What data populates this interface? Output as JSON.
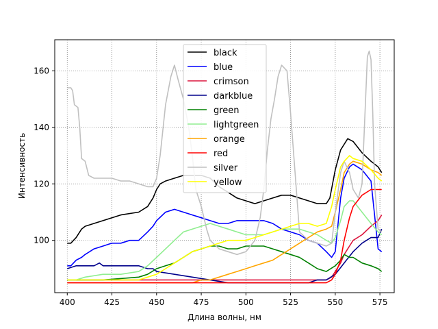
{
  "chart_data": {
    "type": "line",
    "title": "",
    "xlabel": "Длина волны, нм",
    "ylabel": "Интенсивность",
    "xlim": [
      393,
      583
    ],
    "ylim": [
      81.5,
      171
    ],
    "xticks": [
      400,
      425,
      450,
      475,
      500,
      525,
      550,
      575
    ],
    "yticks": [
      100,
      120,
      140,
      160
    ],
    "grid": true,
    "legend_position": "top-center",
    "series": [
      {
        "name": "black",
        "color": "#000000",
        "x": [
          400,
          402,
          405,
          408,
          410,
          415,
          420,
          425,
          430,
          440,
          445,
          448,
          450,
          452,
          455,
          460,
          465,
          470,
          475,
          480,
          485,
          490,
          495,
          500,
          505,
          510,
          515,
          520,
          525,
          530,
          535,
          540,
          545,
          547,
          550,
          553,
          555,
          557,
          560,
          565,
          570,
          574,
          576
        ],
        "y": [
          99,
          99,
          101,
          104,
          105,
          106,
          107,
          108,
          109,
          110,
          112,
          115,
          118,
          120,
          121,
          122,
          123,
          123,
          123,
          122,
          119,
          117,
          115,
          114,
          113,
          114,
          115,
          116,
          116,
          115,
          114,
          113,
          113,
          115,
          125,
          132,
          134,
          136,
          135,
          131,
          128,
          126,
          124
        ]
      },
      {
        "name": "blue",
        "color": "#0000ff",
        "x": [
          400,
          402,
          405,
          408,
          410,
          415,
          420,
          425,
          430,
          435,
          440,
          445,
          448,
          450,
          455,
          460,
          465,
          470,
          475,
          480,
          485,
          490,
          495,
          500,
          505,
          510,
          515,
          520,
          525,
          530,
          535,
          540,
          545,
          548,
          550,
          553,
          555,
          558,
          560,
          565,
          570,
          574,
          576
        ],
        "y": [
          91,
          91,
          93,
          94,
          95,
          97,
          98,
          99,
          99,
          100,
          100,
          103,
          105,
          107,
          110,
          111,
          110,
          109,
          108,
          107,
          106,
          106,
          107,
          107,
          107,
          107,
          106,
          104,
          103,
          102,
          100,
          99,
          96,
          94,
          96,
          115,
          122,
          126,
          127,
          125,
          121,
          97,
          96
        ]
      },
      {
        "name": "crimson",
        "color": "#dc143c",
        "x": [
          400,
          420,
          440,
          460,
          480,
          500,
          520,
          535,
          540,
          545,
          548,
          550,
          553,
          555,
          558,
          560,
          565,
          570,
          574,
          576
        ],
        "y": [
          86,
          86,
          86,
          86,
          86,
          86,
          86,
          86,
          86,
          86,
          87,
          89,
          92,
          95,
          98,
          100,
          102,
          105,
          107,
          109
        ]
      },
      {
        "name": "darkblue",
        "color": "#00008b",
        "x": [
          400,
          405,
          410,
          415,
          418,
          420,
          425,
          430,
          440,
          445,
          448,
          450,
          460,
          470,
          480,
          490,
          500,
          510,
          520,
          530,
          535,
          540,
          545,
          550,
          555,
          560,
          565,
          570,
          574,
          576
        ],
        "y": [
          90,
          91,
          91,
          91,
          92,
          91,
          91,
          91,
          91,
          90,
          90,
          89,
          88,
          87,
          86,
          85,
          85,
          85,
          85,
          85,
          85,
          86,
          86,
          88,
          92,
          96,
          99,
          101,
          101,
          104
        ]
      },
      {
        "name": "green",
        "color": "#008000",
        "x": [
          400,
          420,
          440,
          445,
          450,
          455,
          460,
          465,
          470,
          475,
          480,
          485,
          490,
          495,
          500,
          505,
          510,
          515,
          520,
          525,
          530,
          535,
          540,
          545,
          550,
          553,
          555,
          558,
          560,
          565,
          570,
          574,
          576
        ],
        "y": [
          86,
          86,
          87,
          88,
          90,
          91,
          92,
          94,
          96,
          97,
          98,
          98,
          97,
          97,
          98,
          98,
          98,
          97,
          96,
          95,
          94,
          92,
          90,
          89,
          91,
          93,
          95,
          94,
          94,
          92,
          91,
          90,
          89
        ]
      },
      {
        "name": "lightgreen",
        "color": "#90ee90",
        "x": [
          400,
          405,
          410,
          420,
          430,
          440,
          445,
          450,
          455,
          460,
          465,
          470,
          475,
          480,
          485,
          490,
          495,
          500,
          505,
          510,
          515,
          520,
          525,
          530,
          535,
          540,
          545,
          548,
          550,
          553,
          555,
          558,
          560,
          565,
          570,
          574,
          576
        ],
        "y": [
          86,
          86,
          87,
          88,
          88,
          89,
          91,
          94,
          97,
          100,
          103,
          104,
          105,
          106,
          105,
          104,
          103,
          102,
          102,
          102,
          103,
          104,
          104,
          104,
          103,
          102,
          100,
          99,
          101,
          107,
          112,
          114,
          114,
          110,
          106,
          103,
          102
        ]
      },
      {
        "name": "orange",
        "color": "#ffa500",
        "x": [
          400,
          420,
          440,
          460,
          470,
          475,
          480,
          485,
          490,
          495,
          500,
          505,
          510,
          515,
          520,
          525,
          530,
          535,
          540,
          545,
          548,
          550,
          553,
          555,
          558,
          560,
          565,
          570,
          574,
          576
        ],
        "y": [
          85,
          85,
          85,
          85,
          85,
          86,
          86,
          87,
          88,
          89,
          90,
          91,
          92,
          93,
          95,
          97,
          99,
          101,
          103,
          104,
          105,
          110,
          118,
          124,
          127,
          128,
          127,
          125,
          124,
          123
        ]
      },
      {
        "name": "red",
        "color": "#ff0000",
        "x": [
          400,
          420,
          440,
          460,
          480,
          500,
          520,
          535,
          540,
          545,
          548,
          550,
          553,
          555,
          558,
          560,
          565,
          570,
          574,
          576
        ],
        "y": [
          85,
          85,
          85,
          85,
          85,
          85,
          85,
          85,
          85,
          85,
          86,
          88,
          93,
          100,
          108,
          112,
          116,
          118,
          118,
          118
        ]
      },
      {
        "name": "silver",
        "color": "#c0c0c0",
        "x": [
          400,
          402,
          403,
          404,
          406,
          407,
          408,
          410,
          412,
          415,
          420,
          425,
          430,
          435,
          440,
          445,
          448,
          450,
          452,
          455,
          458,
          460,
          462,
          465,
          468,
          470,
          472,
          475,
          478,
          480,
          485,
          490,
          495,
          500,
          505,
          508,
          510,
          512,
          514,
          516,
          518,
          520,
          523,
          525,
          528,
          530,
          535,
          540,
          545,
          548,
          550,
          553,
          555,
          558,
          560,
          563,
          565,
          566,
          568,
          569,
          570,
          571,
          572,
          574,
          576
        ],
        "y": [
          154,
          154,
          153,
          148,
          147,
          140,
          129,
          128,
          123,
          122,
          122,
          122,
          121,
          121,
          120,
          119,
          119,
          122,
          130,
          148,
          158,
          162,
          157,
          150,
          140,
          130,
          118,
          112,
          104,
          100,
          97,
          96,
          95,
          96,
          100,
          108,
          118,
          132,
          143,
          150,
          158,
          162,
          160,
          145,
          120,
          103,
          100,
          99,
          98,
          99,
          110,
          124,
          128,
          124,
          118,
          115,
          120,
          135,
          165,
          167,
          164,
          145,
          120,
          104,
          103
        ]
      },
      {
        "name": "yellow",
        "color": "#ffff00",
        "x": [
          400,
          420,
          440,
          445,
          450,
          455,
          460,
          465,
          470,
          475,
          480,
          485,
          490,
          495,
          500,
          505,
          510,
          515,
          520,
          525,
          530,
          535,
          540,
          545,
          548,
          550,
          553,
          555,
          558,
          560,
          565,
          570,
          574,
          576
        ],
        "y": [
          86,
          86,
          86,
          87,
          88,
          90,
          92,
          94,
          96,
          97,
          98,
          99,
          100,
          100,
          100,
          101,
          102,
          103,
          104,
          105,
          106,
          106,
          105,
          106,
          112,
          118,
          126,
          128,
          130,
          129,
          128,
          125,
          122,
          121
        ]
      }
    ]
  }
}
